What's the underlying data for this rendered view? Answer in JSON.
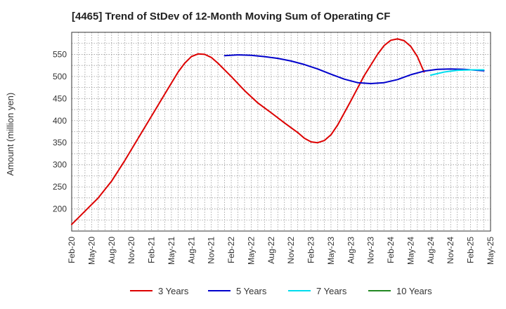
{
  "chart_data": {
    "type": "line",
    "title": "[4465]  Trend of StDev of 12-Month Moving Sum of Operating CF",
    "ylabel": "Amount (million yen)",
    "xlabel": "",
    "ylim": [
      150,
      600
    ],
    "y_ticks": [
      200,
      250,
      300,
      350,
      400,
      450,
      500,
      550
    ],
    "x_tick_labels": [
      "Feb-20",
      "May-20",
      "Aug-20",
      "Nov-20",
      "Feb-21",
      "May-21",
      "Aug-21",
      "Nov-21",
      "Feb-22",
      "May-22",
      "Aug-22",
      "Nov-22",
      "Feb-23",
      "May-23",
      "Aug-23",
      "Nov-23",
      "Feb-24",
      "May-24",
      "Aug-24",
      "Nov-24",
      "Feb-25",
      "May-25"
    ],
    "x_range": [
      "2020-02",
      "2025-05"
    ],
    "grid": true,
    "legend_position": "bottom",
    "series": [
      {
        "name": "3 Years",
        "color": "#dd0000",
        "points": [
          [
            "2020-02",
            165
          ],
          [
            "2020-04",
            195
          ],
          [
            "2020-06",
            225
          ],
          [
            "2020-08",
            263
          ],
          [
            "2020-10",
            310
          ],
          [
            "2020-12",
            360
          ],
          [
            "2021-02",
            410
          ],
          [
            "2021-04",
            460
          ],
          [
            "2021-06",
            510
          ],
          [
            "2021-07",
            530
          ],
          [
            "2021-08",
            545
          ],
          [
            "2021-09",
            551
          ],
          [
            "2021-10",
            550
          ],
          [
            "2021-11",
            543
          ],
          [
            "2021-12",
            530
          ],
          [
            "2022-02",
            500
          ],
          [
            "2022-04",
            468
          ],
          [
            "2022-06",
            440
          ],
          [
            "2022-08",
            418
          ],
          [
            "2022-10",
            395
          ],
          [
            "2022-12",
            373
          ],
          [
            "2023-01",
            360
          ],
          [
            "2023-02",
            352
          ],
          [
            "2023-03",
            350
          ],
          [
            "2023-04",
            355
          ],
          [
            "2023-05",
            368
          ],
          [
            "2023-06",
            390
          ],
          [
            "2023-08",
            445
          ],
          [
            "2023-10",
            502
          ],
          [
            "2023-12",
            550
          ],
          [
            "2024-01",
            570
          ],
          [
            "2024-02",
            582
          ],
          [
            "2024-03",
            585
          ],
          [
            "2024-04",
            581
          ],
          [
            "2024-05",
            568
          ],
          [
            "2024-06",
            545
          ],
          [
            "2024-07",
            510
          ]
        ]
      },
      {
        "name": "5 Years",
        "color": "#0000cc",
        "points": [
          [
            "2022-01",
            547
          ],
          [
            "2022-03",
            549
          ],
          [
            "2022-05",
            548
          ],
          [
            "2022-07",
            545
          ],
          [
            "2022-09",
            541
          ],
          [
            "2022-11",
            535
          ],
          [
            "2023-01",
            527
          ],
          [
            "2023-03",
            517
          ],
          [
            "2023-05",
            505
          ],
          [
            "2023-07",
            494
          ],
          [
            "2023-09",
            486
          ],
          [
            "2023-11",
            484
          ],
          [
            "2024-01",
            486
          ],
          [
            "2024-03",
            493
          ],
          [
            "2024-05",
            504
          ],
          [
            "2024-07",
            512
          ],
          [
            "2024-09",
            516
          ],
          [
            "2024-11",
            517
          ],
          [
            "2025-01",
            516
          ],
          [
            "2025-03",
            514
          ],
          [
            "2025-04",
            513
          ]
        ]
      },
      {
        "name": "7 Years",
        "color": "#00ddee",
        "points": [
          [
            "2024-08",
            503
          ],
          [
            "2024-10",
            510
          ],
          [
            "2024-12",
            514
          ],
          [
            "2025-02",
            515
          ],
          [
            "2025-04",
            515
          ]
        ]
      },
      {
        "name": "10 Years",
        "color": "#228822",
        "points": []
      }
    ]
  }
}
